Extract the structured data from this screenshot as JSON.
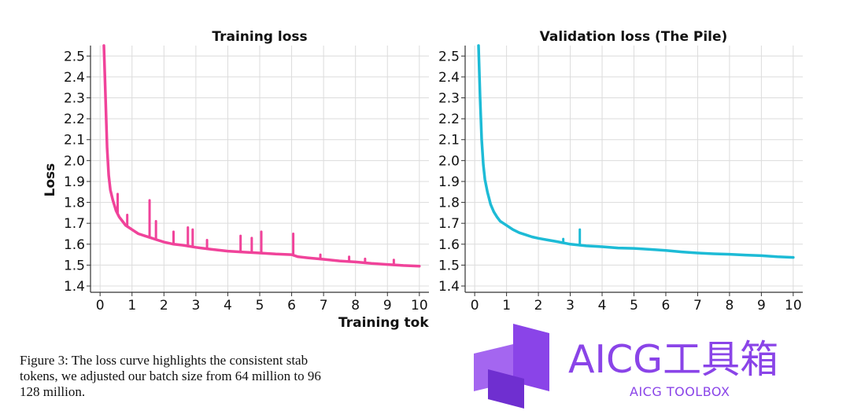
{
  "chart_data": [
    {
      "type": "line",
      "title": "Training loss",
      "xlabel": "Training tok",
      "ylabel": "Loss",
      "xlim": [
        -0.3,
        10.3
      ],
      "ylim": [
        1.37,
        2.55
      ],
      "xticks": [
        "0",
        "1",
        "2",
        "3",
        "4",
        "5",
        "6",
        "7",
        "8",
        "9",
        "10"
      ],
      "yticks": [
        "1.4",
        "1.5",
        "1.6",
        "1.7",
        "1.8",
        "1.9",
        "2.0",
        "2.1",
        "2.2",
        "2.3",
        "2.4",
        "2.5"
      ],
      "grid": true,
      "color": "#f0439a",
      "series": [
        {
          "x": [
            0.12,
            0.17,
            0.22,
            0.27,
            0.32,
            0.4,
            0.5,
            0.6,
            0.7,
            0.8,
            0.9,
            1.0,
            1.2,
            1.4,
            1.6,
            1.8,
            2.0,
            2.3,
            2.6,
            3.0,
            3.5,
            4.0,
            4.5,
            5.0,
            5.5,
            6.0,
            6.2,
            6.5,
            7.0,
            7.5,
            8.0,
            8.5,
            9.0,
            9.5,
            10.0
          ],
          "y": [
            2.55,
            2.3,
            2.06,
            1.93,
            1.86,
            1.81,
            1.76,
            1.73,
            1.71,
            1.69,
            1.68,
            1.67,
            1.65,
            1.64,
            1.63,
            1.62,
            1.61,
            1.6,
            1.595,
            1.585,
            1.575,
            1.567,
            1.562,
            1.558,
            1.553,
            1.55,
            1.54,
            1.535,
            1.528,
            1.52,
            1.515,
            1.508,
            1.503,
            1.498,
            1.495
          ]
        }
      ],
      "spikes": [
        {
          "x": 0.55,
          "y": 1.84
        },
        {
          "x": 0.85,
          "y": 1.74
        },
        {
          "x": 1.55,
          "y": 1.81
        },
        {
          "x": 1.75,
          "y": 1.71
        },
        {
          "x": 2.3,
          "y": 1.66
        },
        {
          "x": 2.75,
          "y": 1.68
        },
        {
          "x": 2.9,
          "y": 1.67
        },
        {
          "x": 3.35,
          "y": 1.62
        },
        {
          "x": 4.4,
          "y": 1.64
        },
        {
          "x": 4.75,
          "y": 1.63
        },
        {
          "x": 5.05,
          "y": 1.66
        },
        {
          "x": 6.05,
          "y": 1.65
        },
        {
          "x": 6.9,
          "y": 1.55
        },
        {
          "x": 7.8,
          "y": 1.54
        },
        {
          "x": 8.3,
          "y": 1.53
        },
        {
          "x": 9.2,
          "y": 1.525
        }
      ]
    },
    {
      "type": "line",
      "title": "Validation loss (The Pile)",
      "xlim": [
        -0.3,
        10.3
      ],
      "ylim": [
        1.37,
        2.55
      ],
      "xticks": [
        "0",
        "1",
        "2",
        "3",
        "4",
        "5",
        "6",
        "7",
        "8",
        "9",
        "10"
      ],
      "yticks": [
        "1.4",
        "1.5",
        "1.6",
        "1.7",
        "1.8",
        "1.9",
        "2.0",
        "2.1",
        "2.2",
        "2.3",
        "2.4",
        "2.5"
      ],
      "grid": true,
      "color": "#1dbbd6",
      "series": [
        {
          "x": [
            0.12,
            0.17,
            0.22,
            0.27,
            0.32,
            0.4,
            0.5,
            0.6,
            0.7,
            0.8,
            0.9,
            1.0,
            1.2,
            1.4,
            1.6,
            1.8,
            2.0,
            2.3,
            2.6,
            3.0,
            3.5,
            4.0,
            4.5,
            5.0,
            5.5,
            6.0,
            6.5,
            7.0,
            7.5,
            8.0,
            8.5,
            9.0,
            9.5,
            10.0
          ],
          "y": [
            2.55,
            2.3,
            2.1,
            1.98,
            1.91,
            1.85,
            1.79,
            1.755,
            1.73,
            1.71,
            1.7,
            1.69,
            1.67,
            1.655,
            1.645,
            1.635,
            1.628,
            1.62,
            1.612,
            1.6,
            1.592,
            1.588,
            1.582,
            1.58,
            1.575,
            1.57,
            1.563,
            1.558,
            1.554,
            1.552,
            1.548,
            1.545,
            1.54,
            1.537
          ]
        }
      ],
      "spikes": [
        {
          "x": 2.78,
          "y": 1.625
        },
        {
          "x": 3.3,
          "y": 1.67
        }
      ]
    }
  ],
  "caption": {
    "line1": "Figure 3: The loss curve highlights the consistent stab",
    "line2": "tokens, we adjusted our batch size from 64 million to 96",
    "line3": "128 million."
  },
  "watermark": {
    "main": "AICG工具箱",
    "sub": "AICG TOOLBOX",
    "color": "#8a44e8"
  }
}
